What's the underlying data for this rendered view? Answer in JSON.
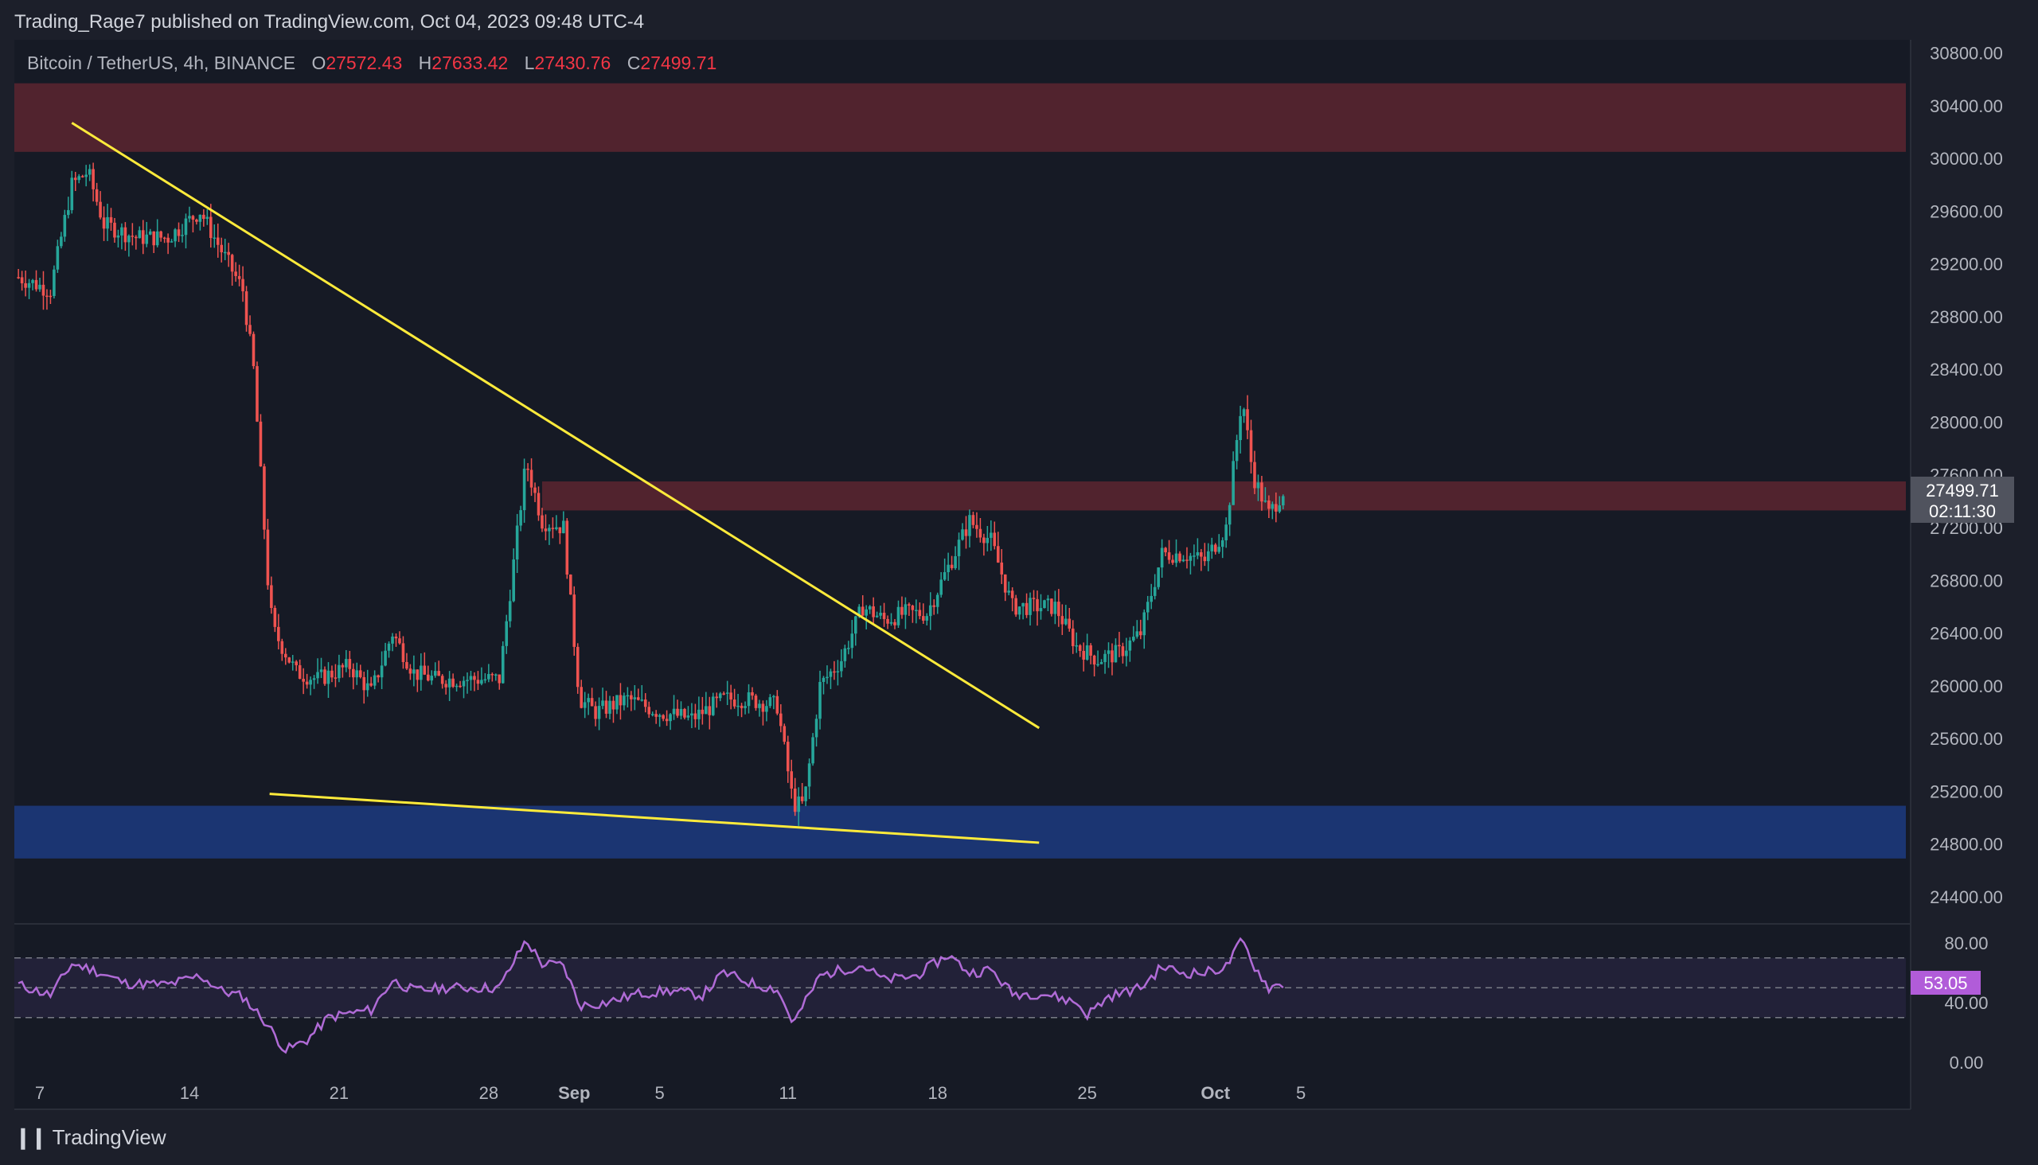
{
  "header": {
    "publisher": "Trading_Rage7 published on TradingView.com, Oct 04, 2023 09:48 UTC-4"
  },
  "symbol": {
    "name": "Bitcoin / TetherUS, 4h, BINANCE",
    "open_label": "O",
    "open": "27572.43",
    "high_label": "H",
    "high": "27633.42",
    "low_label": "L",
    "low": "27430.76",
    "close_label": "C",
    "close": "27499.71"
  },
  "price_badge": {
    "price": "27499.71",
    "countdown": "02:11:30"
  },
  "rsi_badge": {
    "value": "53.05"
  },
  "footer": {
    "brand": "TradingView"
  },
  "colors": {
    "background": "#1c1f2a",
    "pane": "#161a25",
    "up": "#26a69a",
    "down": "#ef5350",
    "trendline": "#ffeb3b",
    "resistance_zone": "#7a2a35",
    "support_zone": "#1e3f8c",
    "rsi_line": "#b06bd6"
  },
  "chart_data": {
    "type": "candlestick",
    "title": "Bitcoin / TetherUS, 4h, BINANCE",
    "y_axis": {
      "min": 24200,
      "max": 30900,
      "ticks": [
        "30800.00",
        "30400.00",
        "30000.00",
        "29600.00",
        "29200.00",
        "28800.00",
        "28400.00",
        "28000.00",
        "27600.00",
        "27200.00",
        "26800.00",
        "26400.00",
        "26000.00",
        "25600.00",
        "25200.00",
        "24800.00",
        "24400.00"
      ]
    },
    "x_axis": {
      "labels": [
        "7",
        "14",
        "21",
        "28",
        "Sep",
        "5",
        "11",
        "18",
        "25",
        "Oct",
        "5"
      ],
      "range_days": [
        "2023-08-06",
        "2023-10-05"
      ]
    },
    "price_path": [
      [
        "2023-08-06T00:00",
        29100
      ],
      [
        "2023-08-07T12:00",
        29000
      ],
      [
        "2023-08-08T12:00",
        29800
      ],
      [
        "2023-08-09T06:00",
        29900
      ],
      [
        "2023-08-10T00:00",
        29500
      ],
      [
        "2023-08-11T12:00",
        29400
      ],
      [
        "2023-08-13T00:00",
        29400
      ],
      [
        "2023-08-14T12:00",
        29600
      ],
      [
        "2023-08-15T12:00",
        29300
      ],
      [
        "2023-08-16T12:00",
        29000
      ],
      [
        "2023-08-17T00:00",
        28400
      ],
      [
        "2023-08-17T18:00",
        26600
      ],
      [
        "2023-08-18T00:00",
        26400
      ],
      [
        "2023-08-19T00:00",
        26100
      ],
      [
        "2023-08-20T00:00",
        26050
      ],
      [
        "2023-08-21T12:00",
        26150
      ],
      [
        "2023-08-22T12:00",
        25950
      ],
      [
        "2023-08-23T12:00",
        26400
      ],
      [
        "2023-08-24T12:00",
        26100
      ],
      [
        "2023-08-25T12:00",
        26050
      ],
      [
        "2023-08-27T00:00",
        26050
      ],
      [
        "2023-08-28T12:00",
        26050
      ],
      [
        "2023-08-29T18:00",
        27700
      ],
      [
        "2023-08-30T12:00",
        27250
      ],
      [
        "2023-08-31T12:00",
        27200
      ],
      [
        "2023-09-01T06:00",
        25900
      ],
      [
        "2023-09-02T00:00",
        25800
      ],
      [
        "2023-09-03T12:00",
        25900
      ],
      [
        "2023-09-05T00:00",
        25800
      ],
      [
        "2023-09-06T12:00",
        25750
      ],
      [
        "2023-09-08T00:00",
        25900
      ],
      [
        "2023-09-09T00:00",
        25900
      ],
      [
        "2023-09-10T12:00",
        25850
      ],
      [
        "2023-09-11T06:00",
        25100
      ],
      [
        "2023-09-11T18:00",
        25100
      ],
      [
        "2023-09-12T12:00",
        26000
      ],
      [
        "2023-09-13T12:00",
        26200
      ],
      [
        "2023-09-14T12:00",
        26600
      ],
      [
        "2023-09-15T12:00",
        26500
      ],
      [
        "2023-09-16T12:00",
        26550
      ],
      [
        "2023-09-17T12:00",
        26550
      ],
      [
        "2023-09-18T12:00",
        26900
      ],
      [
        "2023-09-19T12:00",
        27250
      ],
      [
        "2023-09-20T12:00",
        27100
      ],
      [
        "2023-09-21T12:00",
        26600
      ],
      [
        "2023-09-22T12:00",
        26600
      ],
      [
        "2023-09-23T12:00",
        26600
      ],
      [
        "2023-09-24T12:00",
        26300
      ],
      [
        "2023-09-25T12:00",
        26200
      ],
      [
        "2023-09-26T12:00",
        26250
      ],
      [
        "2023-09-27T12:00",
        26400
      ],
      [
        "2023-09-28T12:00",
        27000
      ],
      [
        "2023-09-29T12:00",
        27000
      ],
      [
        "2023-09-30T12:00",
        26950
      ],
      [
        "2023-10-01T12:00",
        27200
      ],
      [
        "2023-10-02T06:00",
        28200
      ],
      [
        "2023-10-02T18:00",
        27600
      ],
      [
        "2023-10-03T12:00",
        27300
      ],
      [
        "2023-10-04T06:00",
        27500
      ]
    ],
    "last_price": 27499.71,
    "zones": [
      {
        "type": "resistance",
        "from": 30050,
        "to": 30570
      },
      {
        "type": "resistance",
        "from": 27330,
        "to": 27550
      },
      {
        "type": "support",
        "from": 24690,
        "to": 25090
      }
    ],
    "trendlines": [
      {
        "from": [
          "2023-08-08T12:00",
          30270
        ],
        "to": [
          "2023-09-22T18:00",
          25680
        ]
      },
      {
        "from": [
          "2023-08-17T18:00",
          25180
        ],
        "to": [
          "2023-09-22T18:00",
          24810
        ]
      }
    ],
    "rsi": {
      "ticks": [
        "80.00",
        "40.00",
        "0.00"
      ],
      "value": 53.05,
      "band_upper": 70,
      "band_lower": 30,
      "mid": 50,
      "path": [
        [
          "2023-08-06T00:00",
          52
        ],
        [
          "2023-08-07T12:00",
          45
        ],
        [
          "2023-08-08T12:00",
          66
        ],
        [
          "2023-08-09T12:00",
          62
        ],
        [
          "2023-08-11T00:00",
          53
        ],
        [
          "2023-08-13T00:00",
          52
        ],
        [
          "2023-08-14T12:00",
          58
        ],
        [
          "2023-08-15T12:00",
          48
        ],
        [
          "2023-08-16T12:00",
          44
        ],
        [
          "2023-08-17T12:00",
          28
        ],
        [
          "2023-08-18T12:00",
          8
        ],
        [
          "2023-08-19T12:00",
          15
        ],
        [
          "2023-08-20T12:00",
          30
        ],
        [
          "2023-08-21T12:00",
          33
        ],
        [
          "2023-08-22T12:00",
          35
        ],
        [
          "2023-08-23T12:00",
          55
        ],
        [
          "2023-08-24T12:00",
          48
        ],
        [
          "2023-08-26T00:00",
          50
        ],
        [
          "2023-08-27T12:00",
          50
        ],
        [
          "2023-08-28T12:00",
          50
        ],
        [
          "2023-08-29T18:00",
          82
        ],
        [
          "2023-08-30T12:00",
          66
        ],
        [
          "2023-08-31T12:00",
          65
        ],
        [
          "2023-09-01T06:00",
          38
        ],
        [
          "2023-09-02T12:00",
          40
        ],
        [
          "2023-09-04T00:00",
          46
        ],
        [
          "2023-09-05T12:00",
          48
        ],
        [
          "2023-09-07T00:00",
          45
        ],
        [
          "2023-09-08T00:00",
          60
        ],
        [
          "2023-09-09T12:00",
          52
        ],
        [
          "2023-09-10T12:00",
          49
        ],
        [
          "2023-09-11T06:00",
          26
        ],
        [
          "2023-09-12T12:00",
          58
        ],
        [
          "2023-09-13T12:00",
          62
        ],
        [
          "2023-09-14T12:00",
          65
        ],
        [
          "2023-09-15T12:00",
          55
        ],
        [
          "2023-09-17T00:00",
          58
        ],
        [
          "2023-09-18T12:00",
          72
        ],
        [
          "2023-09-19T12:00",
          60
        ],
        [
          "2023-09-20T12:00",
          62
        ],
        [
          "2023-09-21T12:00",
          46
        ],
        [
          "2023-09-23T00:00",
          46
        ],
        [
          "2023-09-24T12:00",
          40
        ],
        [
          "2023-09-25T00:00",
          32
        ],
        [
          "2023-09-26T00:00",
          44
        ],
        [
          "2023-09-27T12:00",
          50
        ],
        [
          "2023-09-28T12:00",
          64
        ],
        [
          "2023-09-29T12:00",
          60
        ],
        [
          "2023-09-30T12:00",
          60
        ],
        [
          "2023-10-01T12:00",
          64
        ],
        [
          "2023-10-02T06:00",
          82
        ],
        [
          "2023-10-02T18:00",
          66
        ],
        [
          "2023-10-03T12:00",
          50
        ],
        [
          "2023-10-04T06:00",
          53
        ]
      ]
    }
  }
}
